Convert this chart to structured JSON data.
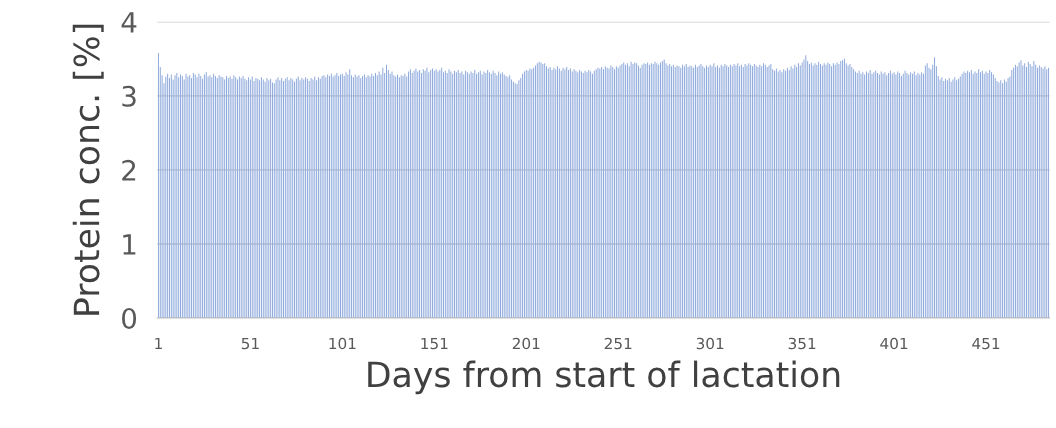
{
  "chart_data": {
    "type": "bar",
    "xlabel": "Days from start of lactation",
    "ylabel": "Protein conc. [%]",
    "color": "#8faadc",
    "ylim": [
      0,
      4
    ],
    "yticks": [
      0,
      1,
      2,
      3,
      4
    ],
    "grid": "y",
    "legend": false,
    "categories": [
      "1",
      null,
      null,
      null,
      null,
      null,
      null,
      null,
      null,
      null,
      null,
      null,
      null,
      null,
      null,
      null,
      null,
      null,
      null,
      null,
      null,
      null,
      null,
      null,
      null,
      null,
      null,
      null,
      null,
      null,
      null,
      null,
      null,
      null,
      null,
      null,
      null,
      null,
      null,
      null,
      null,
      null,
      null,
      null,
      null,
      null,
      null,
      null,
      null,
      null,
      "51",
      null,
      null,
      null,
      null,
      null,
      null,
      null,
      null,
      null,
      null,
      null,
      null,
      null,
      null,
      null,
      null,
      null,
      null,
      null,
      null,
      null,
      null,
      null,
      null,
      null,
      null,
      null,
      null,
      null,
      null,
      null,
      null,
      null,
      null,
      null,
      null,
      null,
      null,
      null,
      null,
      null,
      null,
      null,
      null,
      null,
      null,
      null,
      null,
      null,
      "101",
      null,
      null,
      null,
      null,
      null,
      null,
      null,
      null,
      null,
      null,
      null,
      null,
      null,
      null,
      null,
      null,
      null,
      null,
      null,
      null,
      null,
      null,
      null,
      null,
      null,
      null,
      null,
      null,
      null,
      null,
      null,
      null,
      null,
      null,
      null,
      null,
      null,
      null,
      null,
      null,
      null,
      null,
      null,
      null,
      null,
      null,
      null,
      null,
      null,
      "151",
      null,
      null,
      null,
      null,
      null,
      null,
      null,
      null,
      null,
      null,
      null,
      null,
      null,
      null,
      null,
      null,
      null,
      null,
      null,
      null,
      null,
      null,
      null,
      null,
      null,
      null,
      null,
      null,
      null,
      null,
      null,
      null,
      null,
      null,
      null,
      null,
      null,
      null,
      null,
      null,
      null,
      null,
      null,
      null,
      null,
      null,
      null,
      null,
      null,
      "201",
      null,
      null,
      null,
      null,
      null,
      null,
      null,
      null,
      null,
      null,
      null,
      null,
      null,
      null,
      null,
      null,
      null,
      null,
      null,
      null,
      null,
      null,
      null,
      null,
      null,
      null,
      null,
      null,
      null,
      null,
      null,
      null,
      null,
      null,
      null,
      null,
      null,
      null,
      null,
      null,
      null,
      null,
      null,
      null,
      null,
      null,
      null,
      null,
      null,
      "251",
      null,
      null,
      null,
      null,
      null,
      null,
      null,
      null,
      null,
      null,
      null,
      null,
      null,
      null,
      null,
      null,
      null,
      null,
      null,
      null,
      null,
      null,
      null,
      null,
      null,
      null,
      null,
      null,
      null,
      null,
      null,
      null,
      null,
      null,
      null,
      null,
      null,
      null,
      null,
      null,
      null,
      null,
      null,
      null,
      null,
      null,
      null,
      null,
      null,
      "301",
      null,
      null,
      null,
      null,
      null,
      null,
      null,
      null,
      null,
      null,
      null,
      null,
      null,
      null,
      null,
      null,
      null,
      null,
      null,
      null,
      null,
      null,
      null,
      null,
      null,
      null,
      null,
      null,
      null,
      null,
      null,
      null,
      null,
      null,
      null,
      null,
      null,
      null,
      null,
      null,
      null,
      null,
      null,
      null,
      null,
      null,
      null,
      null,
      null,
      "351",
      null,
      null,
      null,
      null,
      null,
      null,
      null,
      null,
      null,
      null,
      null,
      null,
      null,
      null,
      null,
      null,
      null,
      null,
      null,
      null,
      null,
      null,
      null,
      null,
      null,
      null,
      null,
      null,
      null,
      null,
      null,
      null,
      null,
      null,
      null,
      null,
      null,
      null,
      null,
      null,
      null,
      null,
      null,
      null,
      null,
      null,
      null,
      null,
      null,
      "401",
      null,
      null,
      null,
      null,
      null,
      null,
      null,
      null,
      null,
      null,
      null,
      null,
      null,
      null,
      null,
      null,
      null,
      null,
      null,
      null,
      null,
      null,
      null,
      null,
      null,
      null,
      null,
      null,
      null,
      null,
      null,
      null,
      null,
      null,
      null,
      null,
      null,
      null,
      null,
      null,
      null,
      null,
      null,
      null,
      null,
      null,
      null,
      null,
      null,
      "451",
      null,
      null,
      null,
      null,
      null,
      null,
      null,
      null,
      null,
      null,
      null,
      null,
      null,
      null,
      null,
      null,
      null,
      null,
      null,
      null,
      null,
      null,
      null,
      null,
      null,
      null,
      null,
      null,
      null,
      null,
      null,
      null,
      null,
      null
    ],
    "values": [
      3.58,
      3.39,
      3.28,
      3.17,
      3.26,
      3.3,
      3.24,
      3.29,
      3.22,
      3.28,
      3.31,
      3.25,
      3.29,
      3.27,
      3.22,
      3.3,
      3.26,
      3.28,
      3.24,
      3.31,
      3.29,
      3.25,
      3.3,
      3.27,
      3.23,
      3.29,
      3.32,
      3.26,
      3.28,
      3.25,
      3.3,
      3.27,
      3.24,
      3.28,
      3.26,
      3.25,
      3.22,
      3.27,
      3.24,
      3.26,
      3.23,
      3.28,
      3.25,
      3.22,
      3.26,
      3.24,
      3.27,
      3.23,
      3.21,
      3.25,
      3.22,
      3.26,
      3.2,
      3.24,
      3.23,
      3.21,
      3.25,
      3.22,
      3.19,
      3.24,
      3.21,
      3.23,
      3.18,
      3.17,
      3.22,
      3.25,
      3.21,
      3.24,
      3.2,
      3.23,
      3.25,
      3.21,
      3.24,
      3.22,
      3.19,
      3.23,
      3.26,
      3.21,
      3.24,
      3.22,
      3.25,
      3.23,
      3.2,
      3.24,
      3.22,
      3.26,
      3.21,
      3.25,
      3.23,
      3.27,
      3.28,
      3.25,
      3.29,
      3.27,
      3.3,
      3.26,
      3.28,
      3.31,
      3.27,
      3.29,
      3.3,
      3.27,
      3.32,
      3.29,
      3.36,
      3.28,
      3.25,
      3.29,
      3.26,
      3.28,
      3.24,
      3.27,
      3.29,
      3.25,
      3.28,
      3.26,
      3.3,
      3.27,
      3.31,
      3.28,
      3.33,
      3.29,
      3.38,
      3.31,
      3.42,
      3.35,
      3.3,
      3.33,
      3.28,
      3.26,
      3.29,
      3.25,
      3.28,
      3.27,
      3.3,
      3.26,
      3.33,
      3.36,
      3.31,
      3.34,
      3.37,
      3.33,
      3.35,
      3.31,
      3.36,
      3.34,
      3.38,
      3.32,
      3.35,
      3.37,
      3.34,
      3.36,
      3.33,
      3.35,
      3.38,
      3.32,
      3.34,
      3.31,
      3.36,
      3.33,
      3.3,
      3.34,
      3.32,
      3.35,
      3.31,
      3.33,
      3.29,
      3.34,
      3.32,
      3.3,
      3.33,
      3.31,
      3.35,
      3.3,
      3.32,
      3.34,
      3.29,
      3.33,
      3.31,
      3.35,
      3.32,
      3.3,
      3.34,
      3.31,
      3.28,
      3.33,
      3.3,
      3.32,
      3.29,
      3.27,
      3.25,
      3.28,
      3.22,
      3.19,
      3.17,
      3.16,
      3.21,
      3.24,
      3.3,
      3.33,
      3.35,
      3.34,
      3.37,
      3.36,
      3.38,
      3.41,
      3.44,
      3.46,
      3.45,
      3.43,
      3.44,
      3.4,
      3.37,
      3.39,
      3.35,
      3.38,
      3.36,
      3.4,
      3.37,
      3.34,
      3.38,
      3.36,
      3.39,
      3.35,
      3.37,
      3.33,
      3.36,
      3.34,
      3.32,
      3.35,
      3.33,
      3.31,
      3.34,
      3.32,
      3.35,
      3.33,
      3.3,
      3.34,
      3.36,
      3.38,
      3.37,
      3.39,
      3.36,
      3.4,
      3.38,
      3.37,
      3.41,
      3.39,
      3.36,
      3.4,
      3.38,
      3.41,
      3.43,
      3.45,
      3.42,
      3.44,
      3.4,
      3.46,
      3.43,
      3.45,
      3.44,
      3.41,
      3.38,
      3.42,
      3.44,
      3.43,
      3.45,
      3.42,
      3.44,
      3.43,
      3.46,
      3.44,
      3.42,
      3.45,
      3.47,
      3.49,
      3.44,
      3.41,
      3.43,
      3.4,
      3.42,
      3.39,
      3.41,
      3.4,
      3.38,
      3.42,
      3.4,
      3.43,
      3.39,
      3.41,
      3.4,
      3.38,
      3.42,
      3.39,
      3.41,
      3.43,
      3.4,
      3.38,
      3.41,
      3.39,
      3.42,
      3.4,
      3.44,
      3.39,
      3.41,
      3.38,
      3.42,
      3.4,
      3.43,
      3.41,
      3.39,
      3.42,
      3.4,
      3.43,
      3.41,
      3.44,
      3.4,
      3.42,
      3.39,
      3.43,
      3.41,
      3.44,
      3.42,
      3.4,
      3.43,
      3.41,
      3.39,
      3.42,
      3.4,
      3.44,
      3.42,
      3.39,
      3.41,
      3.43,
      3.36,
      3.34,
      3.37,
      3.33,
      3.35,
      3.32,
      3.36,
      3.34,
      3.38,
      3.35,
      3.4,
      3.37,
      3.42,
      3.39,
      3.44,
      3.41,
      3.45,
      3.49,
      3.55,
      3.47,
      3.43,
      3.45,
      3.41,
      3.44,
      3.42,
      3.46,
      3.43,
      3.41,
      3.44,
      3.42,
      3.45,
      3.43,
      3.4,
      3.44,
      3.42,
      3.45,
      3.43,
      3.47,
      3.48,
      3.5,
      3.44,
      3.41,
      3.43,
      3.39,
      3.36,
      3.33,
      3.31,
      3.34,
      3.3,
      3.32,
      3.29,
      3.33,
      3.31,
      3.35,
      3.3,
      3.32,
      3.34,
      3.31,
      3.29,
      3.33,
      3.3,
      3.32,
      3.28,
      3.31,
      3.34,
      3.3,
      3.32,
      3.29,
      3.33,
      3.31,
      3.27,
      3.3,
      3.34,
      3.31,
      3.29,
      3.32,
      3.3,
      3.33,
      3.28,
      3.31,
      3.29,
      3.32,
      3.3,
      3.41,
      3.44,
      3.38,
      3.36,
      3.42,
      3.52,
      3.4,
      3.27,
      3.22,
      3.25,
      3.2,
      3.23,
      3.21,
      3.24,
      3.19,
      3.22,
      3.25,
      3.21,
      3.23,
      3.26,
      3.3,
      3.33,
      3.31,
      3.34,
      3.32,
      3.35,
      3.3,
      3.33,
      3.31,
      3.36,
      3.32,
      3.34,
      3.3,
      3.33,
      3.31,
      3.35,
      3.32,
      3.29,
      3.24,
      3.2,
      3.18,
      3.21,
      3.17,
      3.22,
      3.19,
      3.24,
      3.26,
      3.35,
      3.38,
      3.42,
      3.4,
      3.45,
      3.48,
      3.41,
      3.44,
      3.39,
      3.46,
      3.43,
      3.4,
      3.47,
      3.42,
      3.38,
      3.41,
      3.39,
      3.37,
      3.4,
      3.36,
      3.38
    ]
  }
}
